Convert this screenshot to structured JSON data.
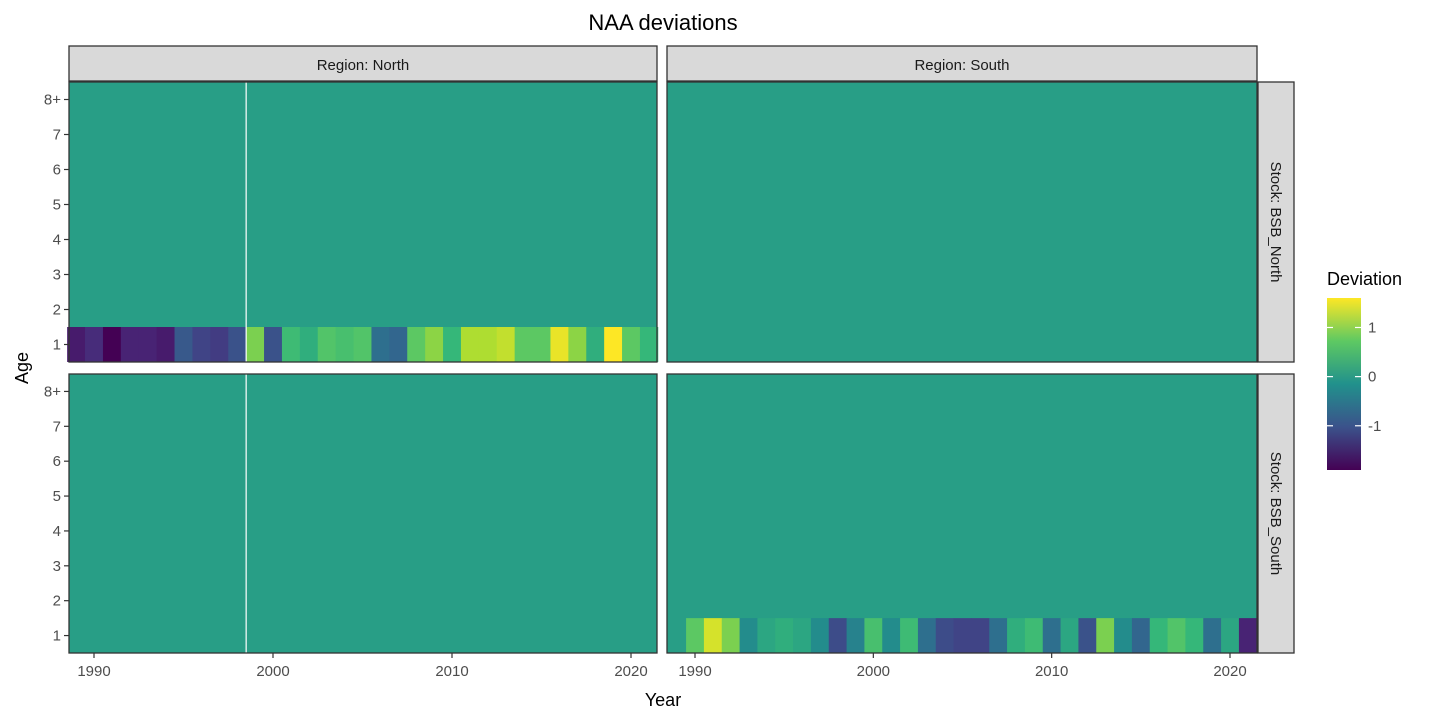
{
  "chart_data": {
    "type": "heatmap",
    "title": "NAA deviations",
    "xlabel": "Year",
    "ylabel": "Age",
    "x_ticks": [
      "1990",
      "2000",
      "2010",
      "2020"
    ],
    "y_ticks": [
      "1",
      "2",
      "3",
      "4",
      "5",
      "6",
      "7",
      "8+"
    ],
    "facet_cols": [
      "Region: North",
      "Region: South"
    ],
    "facet_rows": [
      "Stock: BSB_North",
      "Stock: BSB_South"
    ],
    "legend": {
      "title": "Deviation",
      "breaks": [
        "1",
        "0",
        "-1"
      ],
      "limits": [
        -1.9,
        1.6
      ],
      "colormap": "viridis",
      "position": "right"
    },
    "baseline_value": 0,
    "panels": [
      {
        "stock": "BSB_North",
        "region": "North",
        "years": [
          1989,
          2021
        ],
        "age1_deviations": [
          -1.6,
          -1.4,
          -1.9,
          -1.5,
          -1.5,
          -1.6,
          -0.8,
          -1.1,
          -1.2,
          -0.9,
          0.9,
          -0.9,
          0.4,
          0.2,
          0.6,
          0.5,
          0.6,
          -0.5,
          -0.6,
          0.7,
          1.0,
          0.3,
          1.2,
          1.2,
          1.3,
          0.7,
          0.7,
          1.5,
          1.0,
          0.2,
          1.6,
          0.7,
          0.3
        ]
      },
      {
        "stock": "BSB_North",
        "region": "South",
        "years": [
          1990,
          2021
        ],
        "age1_deviations": []
      },
      {
        "stock": "BSB_South",
        "region": "North",
        "years": [
          1989,
          2021
        ],
        "age1_deviations": []
      },
      {
        "stock": "BSB_South",
        "region": "South",
        "years": [
          1990,
          2021
        ],
        "age1_deviations": [
          0.7,
          1.4,
          0.9,
          -0.2,
          0.1,
          0.2,
          0.1,
          -0.2,
          -1.0,
          -0.3,
          0.5,
          -0.2,
          0.4,
          -0.5,
          -1.0,
          -1.1,
          -1.1,
          -0.5,
          0.2,
          0.4,
          -0.5,
          0.1,
          -0.9,
          0.9,
          -0.2,
          -0.6,
          0.3,
          0.6,
          0.3,
          -0.5,
          0.1,
          -1.5
        ]
      }
    ]
  }
}
